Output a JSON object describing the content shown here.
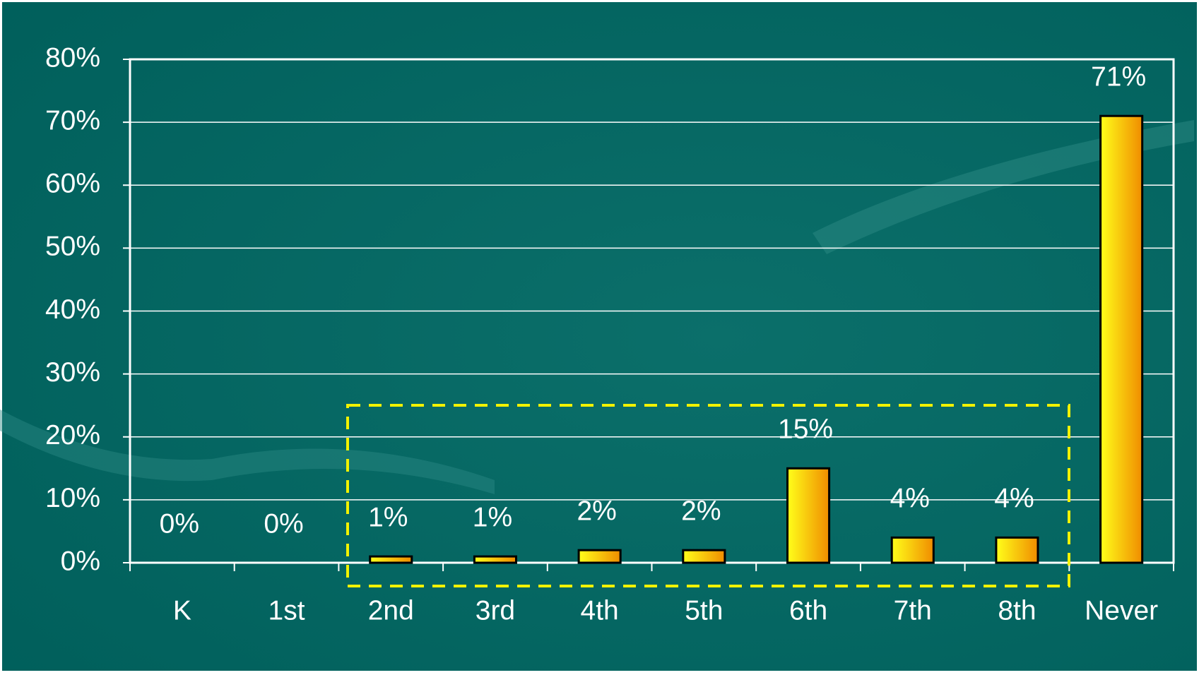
{
  "chart_data": {
    "type": "bar",
    "categories": [
      "K",
      "1st",
      "2nd",
      "3rd",
      "4th",
      "5th",
      "6th",
      "7th",
      "8th",
      "Never"
    ],
    "values": [
      0,
      0,
      1,
      1,
      2,
      2,
      15,
      4,
      4,
      71
    ],
    "value_labels": [
      "0%",
      "0%",
      "1%",
      "1%",
      "2%",
      "2%",
      "15%",
      "4%",
      "4%",
      "71%"
    ],
    "color": "#ffd200",
    "ylim": [
      0,
      80
    ],
    "yticks": [
      {
        "value": 0,
        "label": "0%"
      },
      {
        "value": 10,
        "label": "10%"
      },
      {
        "value": 20,
        "label": "20%"
      },
      {
        "value": 30,
        "label": "30%"
      },
      {
        "value": 40,
        "label": "40%"
      },
      {
        "value": 50,
        "label": "50%"
      },
      {
        "value": 60,
        "label": "60%"
      },
      {
        "value": 70,
        "label": "70%"
      },
      {
        "value": 80,
        "label": "80%"
      }
    ],
    "grid": true
  }
}
